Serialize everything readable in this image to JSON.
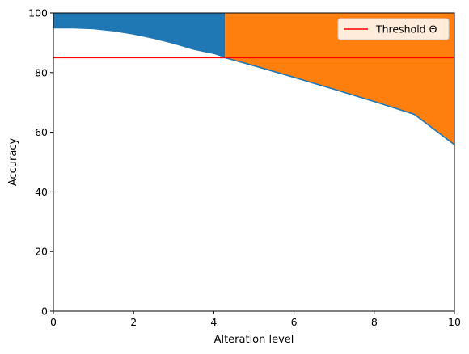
{
  "chart_data": {
    "type": "line",
    "title": "",
    "xlabel": "Alteration level",
    "ylabel": "Accuracy",
    "xlim": [
      0,
      10
    ],
    "ylim": [
      0,
      100
    ],
    "xticks": [
      0,
      2,
      4,
      6,
      8,
      10
    ],
    "yticks": [
      0,
      20,
      40,
      60,
      80,
      100
    ],
    "grid": false,
    "legend": {
      "placement": "top-right",
      "entries": [
        {
          "label": "Threshold Θ",
          "color": "#ff0000"
        }
      ]
    },
    "threshold": {
      "value": 85,
      "color": "#ff0000"
    },
    "crossing_x": 4.28,
    "fill_colors": {
      "before_threshold": "#1f77b4",
      "after_threshold": "#ff7f0e"
    },
    "series": [
      {
        "color": "#1f77b4",
        "x": [
          0,
          0.5,
          1,
          1.5,
          2,
          2.5,
          3,
          3.5,
          4,
          4.28,
          5,
          6,
          7,
          8,
          9,
          10
        ],
        "y": [
          94.8,
          94.8,
          94.5,
          93.8,
          92.7,
          91.3,
          89.6,
          87.6,
          86.2,
          85.0,
          82.3,
          78.4,
          74.4,
          70.3,
          66.0,
          55.8
        ]
      }
    ]
  }
}
